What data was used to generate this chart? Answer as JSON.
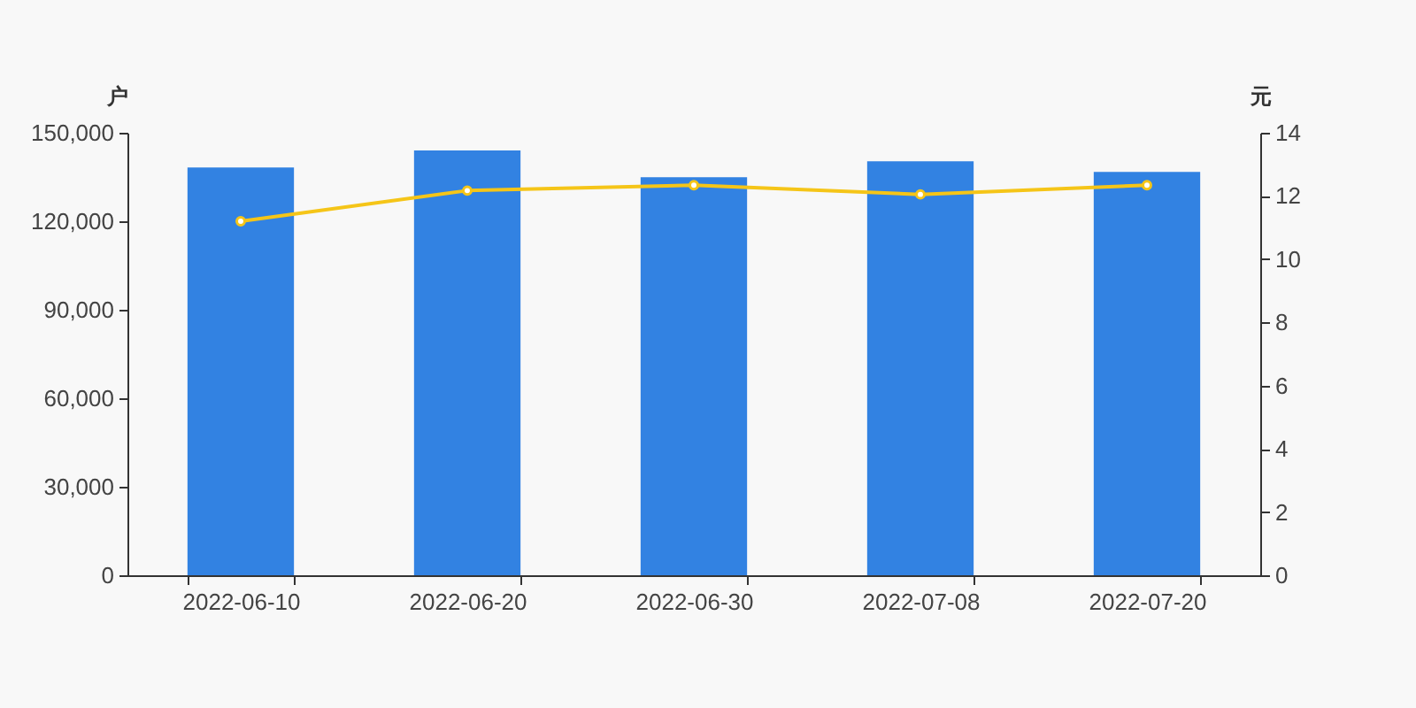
{
  "chart_data": {
    "type": "bar",
    "categories": [
      "2022-06-10",
      "2022-06-20",
      "2022-06-30",
      "2022-07-08",
      "2022-07-20"
    ],
    "ylabel": "户",
    "y2label": "元",
    "ylim": [
      0,
      150000
    ],
    "yticks": [
      {
        "value": 0,
        "label": "0"
      },
      {
        "value": 30000,
        "label": "30,000"
      },
      {
        "value": 60000,
        "label": "60,000"
      },
      {
        "value": 90000,
        "label": "90,000"
      },
      {
        "value": 120000,
        "label": "120,000"
      },
      {
        "value": 150000,
        "label": "150,000"
      }
    ],
    "y2lim": [
      0,
      14
    ],
    "y2ticks": [
      0,
      2,
      4,
      6,
      8,
      10,
      12,
      14
    ],
    "marker": "circle",
    "series": [
      {
        "color": "#3282e2",
        "values": [
          138200,
          144000,
          134900,
          140300,
          136700
        ]
      },
      {
        "type": "line",
        "axis": "y2",
        "color": "#f5c518",
        "values": [
          11.2,
          12.17,
          12.34,
          12.05,
          12.34
        ]
      }
    ]
  }
}
